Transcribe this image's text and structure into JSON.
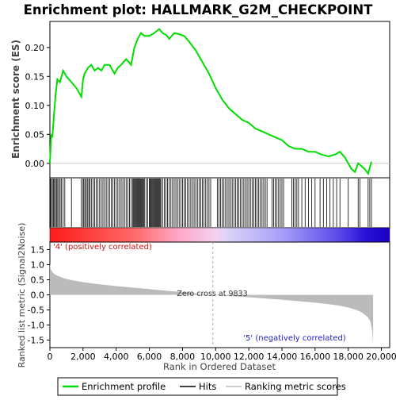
{
  "chart_data": {
    "type": "line",
    "title": "Enrichment plot: HALLMARK_G2M_CHECKPOINT",
    "top_panel": {
      "ylabel": "Enrichment score (ES)",
      "ylim": [
        -0.025,
        0.245
      ],
      "yticks": [
        0.0,
        0.05,
        0.1,
        0.15,
        0.2
      ],
      "ytick_labels": [
        "0.00",
        "0.05",
        "0.10",
        "0.15",
        "0.20"
      ],
      "series": [
        {
          "name": "Enrichment profile",
          "color": "#00dd00",
          "x": [
            0,
            80,
            150,
            250,
            350,
            450,
            600,
            800,
            1000,
            1300,
            1600,
            1900,
            2000,
            2100,
            2300,
            2500,
            2700,
            2900,
            3100,
            3300,
            3600,
            3900,
            4100,
            4300,
            4600,
            4900,
            5100,
            5300,
            5500,
            5700,
            6000,
            6300,
            6600,
            6800,
            7000,
            7200,
            7500,
            7800,
            8100,
            8400,
            8800,
            9200,
            9600,
            10000,
            10400,
            10800,
            11200,
            11600,
            12000,
            12400,
            12800,
            13200,
            13600,
            14000,
            14400,
            14800,
            15200,
            15600,
            16000,
            16400,
            16800,
            17200,
            17500,
            17800,
            18000,
            18200,
            18400,
            18600,
            18800,
            19000,
            19200,
            19400
          ],
          "y": [
            0.0,
            0.05,
            0.045,
            0.085,
            0.12,
            0.145,
            0.14,
            0.16,
            0.15,
            0.14,
            0.13,
            0.115,
            0.145,
            0.155,
            0.165,
            0.17,
            0.16,
            0.165,
            0.16,
            0.17,
            0.17,
            0.155,
            0.165,
            0.17,
            0.18,
            0.17,
            0.2,
            0.215,
            0.225,
            0.22,
            0.22,
            0.225,
            0.232,
            0.225,
            0.222,
            0.215,
            0.225,
            0.223,
            0.22,
            0.21,
            0.195,
            0.175,
            0.155,
            0.13,
            0.11,
            0.095,
            0.085,
            0.075,
            0.07,
            0.06,
            0.055,
            0.05,
            0.045,
            0.04,
            0.03,
            0.025,
            0.025,
            0.02,
            0.02,
            0.015,
            0.012,
            0.015,
            0.02,
            0.01,
            0.0,
            -0.01,
            -0.015,
            0.0,
            -0.005,
            -0.01,
            -0.018,
            0.003
          ]
        }
      ]
    },
    "hits_panel": {
      "legend_name": "Hits",
      "hit_ranks": [
        30,
        90,
        150,
        210,
        280,
        330,
        400,
        470,
        540,
        620,
        700,
        800,
        900,
        1300,
        1900,
        2000,
        2050,
        2120,
        2200,
        2280,
        2350,
        2420,
        2500,
        2600,
        2700,
        2800,
        2900,
        3000,
        3100,
        3200,
        3300,
        3400,
        3500,
        3600,
        3700,
        3800,
        3900,
        4000,
        4100,
        4200,
        4300,
        4400,
        4500,
        4600,
        4700,
        4800,
        4900,
        5000,
        5050,
        5100,
        5150,
        5200,
        5250,
        5300,
        5350,
        5400,
        5450,
        5500,
        5550,
        5600,
        5650,
        5700,
        5800,
        5900,
        6000,
        6050,
        6100,
        6150,
        6200,
        6250,
        6300,
        6350,
        6400,
        6450,
        6500,
        6550,
        6600,
        6650,
        6700,
        6800,
        6900,
        7000,
        7100,
        7200,
        7300,
        7400,
        7500,
        7600,
        7700,
        7800,
        7900,
        8000,
        8100,
        8200,
        8300,
        8400,
        8500,
        8600,
        8700,
        8800,
        8900,
        9000,
        9100,
        9200,
        9300,
        9400,
        9500,
        9600,
        9700,
        10100,
        10200,
        10300,
        10400,
        10500,
        10600,
        10700,
        10800,
        10900,
        11000,
        11100,
        11200,
        11300,
        11400,
        11500,
        11600,
        11700,
        11800,
        11900,
        12000,
        12100,
        12200,
        12300,
        12400,
        12500,
        12600,
        12700,
        12800,
        12900,
        13000,
        13100,
        13400,
        13500,
        13600,
        13700,
        13800,
        13900,
        14000,
        14100,
        14600,
        14700,
        14800,
        14900,
        15000,
        15200,
        15400,
        15600,
        15800,
        16000,
        16300,
        16500,
        16700,
        16900,
        17100,
        17300,
        17500,
        18000,
        18600,
        18700,
        19200,
        19300,
        19400
      ]
    },
    "colorbar": {
      "positive_label": "'4' (positively correlated)",
      "negative_label": "'5' (negatively correlated)"
    },
    "bottom_panel": {
      "ylabel": "Ranked list metric (Signal2Noise)",
      "xlabel": "Rank in Ordered Dataset",
      "ylim": [
        -1.75,
        1.75
      ],
      "yticks": [
        -1.5,
        -1.0,
        -0.5,
        0.0,
        0.5,
        1.0,
        1.5
      ],
      "ytick_labels": [
        "-1.5",
        "-1.0",
        "-0.5",
        "0.0",
        "0.5",
        "1.0",
        "1.5"
      ],
      "legend_name": "Ranking metric scores",
      "metric_profile": {
        "x": [
          0,
          50,
          150,
          300,
          500,
          800,
          1200,
          1600,
          2000,
          3000,
          4000,
          5000,
          6000,
          7000,
          8000,
          9000,
          9833,
          11000,
          12000,
          13000,
          14000,
          15000,
          16000,
          17000,
          17500,
          18000,
          18500,
          18800,
          19000,
          19200,
          19350,
          19450,
          19500
        ],
        "y": [
          1.05,
          0.85,
          0.75,
          0.68,
          0.62,
          0.56,
          0.5,
          0.46,
          0.42,
          0.35,
          0.29,
          0.24,
          0.19,
          0.14,
          0.09,
          0.04,
          0.0,
          -0.05,
          -0.08,
          -0.12,
          -0.16,
          -0.21,
          -0.26,
          -0.32,
          -0.36,
          -0.42,
          -0.5,
          -0.58,
          -0.66,
          -0.75,
          -0.9,
          -1.2,
          -1.65
        ]
      },
      "zero_cross_label": "Zero cross at 9833",
      "zero_cross_rank": 9833
    },
    "xaxis": {
      "xlim": [
        0,
        20500
      ],
      "xticks": [
        0,
        2000,
        4000,
        6000,
        8000,
        10000,
        12000,
        14000,
        16000,
        18000,
        20000
      ],
      "xtick_labels": [
        "0",
        "2,000",
        "4,000",
        "6,000",
        "8,000",
        "10,000",
        "12,000",
        "14,000",
        "16,000",
        "18,000",
        "20,000"
      ],
      "total_ranks": 19500
    },
    "legend": {
      "placement": "bottom",
      "items": [
        {
          "label": "Enrichment profile",
          "color": "#00dd00"
        },
        {
          "label": "Hits",
          "color": "#000000"
        },
        {
          "label": "Ranking metric scores",
          "color": "#bbbbbb"
        }
      ]
    }
  }
}
